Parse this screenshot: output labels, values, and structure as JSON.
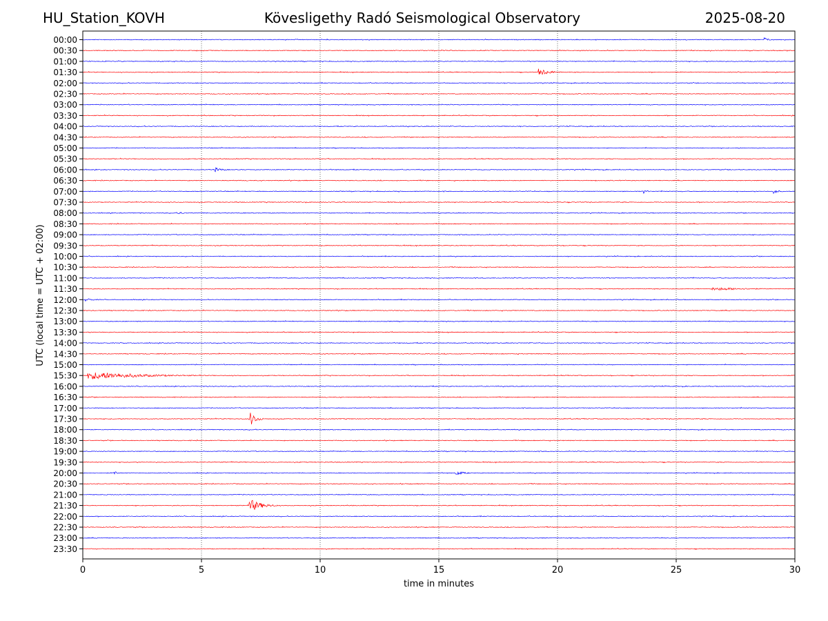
{
  "header": {
    "station": "HU_Station_KOVH",
    "title": "Kövesligethy Radó Seismological Observatory",
    "date": "2025-08-20"
  },
  "chart_data": {
    "type": "line",
    "title": "Kövesligethy Radó Seismological Observatory",
    "xlabel": "time in minutes",
    "ylabel": "UTC (local time = UTC + 02:00)",
    "xlim": [
      0,
      30
    ],
    "xticks": [
      0,
      5,
      10,
      15,
      20,
      25,
      30
    ],
    "grid": "vertical dotted lines at x = 5, 10, 15, 20, 25",
    "colors": [
      "#0000ff",
      "#ff0000"
    ],
    "rows": [
      "00:00",
      "00:30",
      "01:00",
      "01:30",
      "02:00",
      "02:30",
      "03:00",
      "03:30",
      "04:00",
      "04:30",
      "05:00",
      "05:30",
      "06:00",
      "06:30",
      "07:00",
      "07:30",
      "08:00",
      "08:30",
      "09:00",
      "09:30",
      "10:00",
      "10:30",
      "11:00",
      "11:30",
      "12:00",
      "12:30",
      "13:00",
      "13:30",
      "14:00",
      "14:30",
      "15:00",
      "15:30",
      "16:00",
      "16:30",
      "17:00",
      "17:30",
      "18:00",
      "18:30",
      "19:00",
      "19:30",
      "20:00",
      "20:30",
      "21:00",
      "21:30",
      "22:00",
      "22:30",
      "23:00",
      "23:30"
    ],
    "events": [
      {
        "row": "00:00",
        "x": 28.7,
        "duration": 0.4,
        "amplitude": 3
      },
      {
        "row": "01:30",
        "x": 19.2,
        "duration": 1.0,
        "amplitude": 5
      },
      {
        "row": "06:00",
        "x": 5.5,
        "duration": 0.8,
        "amplitude": 3
      },
      {
        "row": "07:00",
        "x": 23.6,
        "duration": 0.4,
        "amplitude": 3
      },
      {
        "row": "07:00",
        "x": 29.1,
        "duration": 0.5,
        "amplitude": 3
      },
      {
        "row": "08:00",
        "x": 4.0,
        "duration": 0.6,
        "amplitude": 2
      },
      {
        "row": "11:30",
        "x": 26.5,
        "duration": 3.5,
        "amplitude": 2
      },
      {
        "row": "12:00",
        "x": 0.1,
        "duration": 0.8,
        "amplitude": 2
      },
      {
        "row": "15:30",
        "x": 0.2,
        "duration": 4.8,
        "amplitude": 5
      },
      {
        "row": "17:30",
        "x": 7.0,
        "duration": 0.6,
        "amplitude": 10
      },
      {
        "row": "20:00",
        "x": 1.3,
        "duration": 0.2,
        "amplitude": 5
      },
      {
        "row": "20:00",
        "x": 15.7,
        "duration": 0.8,
        "amplitude": 3
      },
      {
        "row": "21:30",
        "x": 7.0,
        "duration": 1.2,
        "amplitude": 8
      }
    ]
  }
}
